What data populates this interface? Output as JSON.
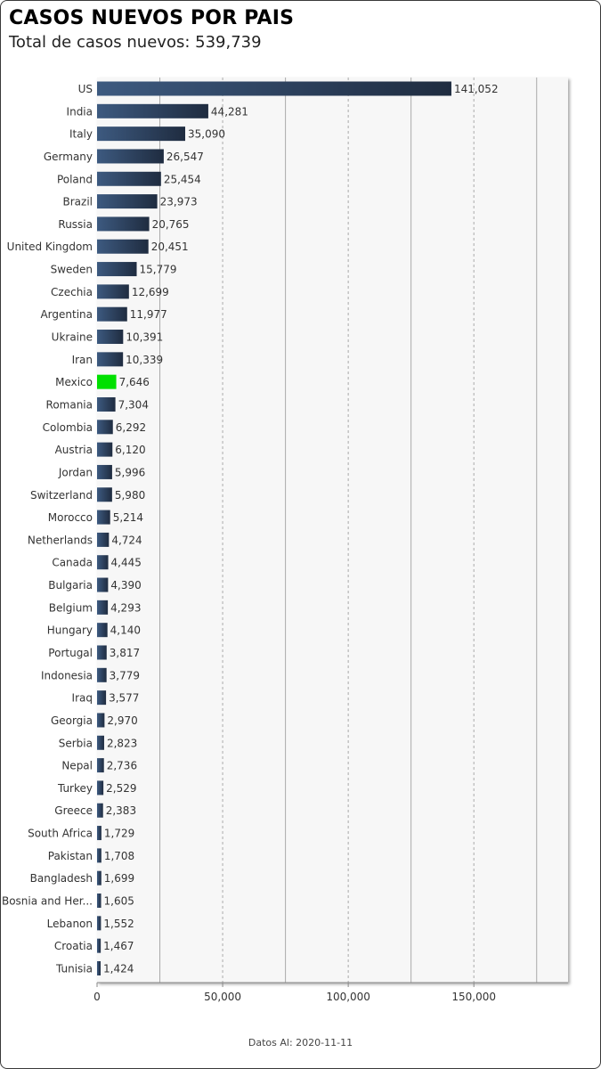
{
  "header": {
    "title": "CASOS NUEVOS POR PAIS",
    "subtitle": "Total de casos nuevos: 539,739"
  },
  "footer": {
    "text": "Datos Al: 2020-11-11"
  },
  "colors": {
    "bar_dark": "#1f2c40",
    "bar_light": "#3d5a80",
    "highlight": "#00e000",
    "plot_background": "#f7f7f7",
    "grid": "#aaaaaa"
  },
  "chart_data": {
    "type": "bar",
    "orientation": "horizontal",
    "title": "CASOS NUEVOS POR PAIS",
    "subtitle": "Total de casos nuevos: 539,739",
    "xlabel": "",
    "ylabel": "",
    "xlim": [
      0,
      187500
    ],
    "x_ticks": [
      0,
      50000,
      100000,
      150000
    ],
    "x_tick_labels": [
      "0",
      "50,000",
      "100,000",
      "150,000"
    ],
    "grid": "vertical dashed",
    "highlight_category": "Mexico",
    "categories": [
      "US",
      "India",
      "Italy",
      "Germany",
      "Poland",
      "Brazil",
      "Russia",
      "United Kingdom",
      "Sweden",
      "Czechia",
      "Argentina",
      "Ukraine",
      "Iran",
      "Mexico",
      "Romania",
      "Colombia",
      "Austria",
      "Jordan",
      "Switzerland",
      "Morocco",
      "Netherlands",
      "Canada",
      "Bulgaria",
      "Belgium",
      "Hungary",
      "Portugal",
      "Indonesia",
      "Iraq",
      "Georgia",
      "Serbia",
      "Nepal",
      "Turkey",
      "Greece",
      "South Africa",
      "Pakistan",
      "Bangladesh",
      "Bosnia and Her...",
      "Lebanon",
      "Croatia",
      "Tunisia"
    ],
    "values": [
      141052,
      44281,
      35090,
      26547,
      25454,
      23973,
      20765,
      20451,
      15779,
      12699,
      11977,
      10391,
      10339,
      7646,
      7304,
      6292,
      6120,
      5996,
      5980,
      5214,
      4724,
      4445,
      4390,
      4293,
      4140,
      3817,
      3779,
      3577,
      2970,
      2823,
      2736,
      2529,
      2383,
      1729,
      1708,
      1699,
      1605,
      1552,
      1467,
      1424
    ],
    "value_labels": [
      "141,052",
      "44,281",
      "35,090",
      "26,547",
      "25,454",
      "23,973",
      "20,765",
      "20,451",
      "15,779",
      "12,699",
      "11,977",
      "10,391",
      "10,339",
      "7,646",
      "7,304",
      "6,292",
      "6,120",
      "5,996",
      "5,980",
      "5,214",
      "4,724",
      "4,445",
      "4,390",
      "4,293",
      "4,140",
      "3,817",
      "3,779",
      "3,577",
      "2,970",
      "2,823",
      "2,736",
      "2,529",
      "2,383",
      "1,729",
      "1,708",
      "1,699",
      "1,605",
      "1,552",
      "1,467",
      "1,424"
    ]
  }
}
